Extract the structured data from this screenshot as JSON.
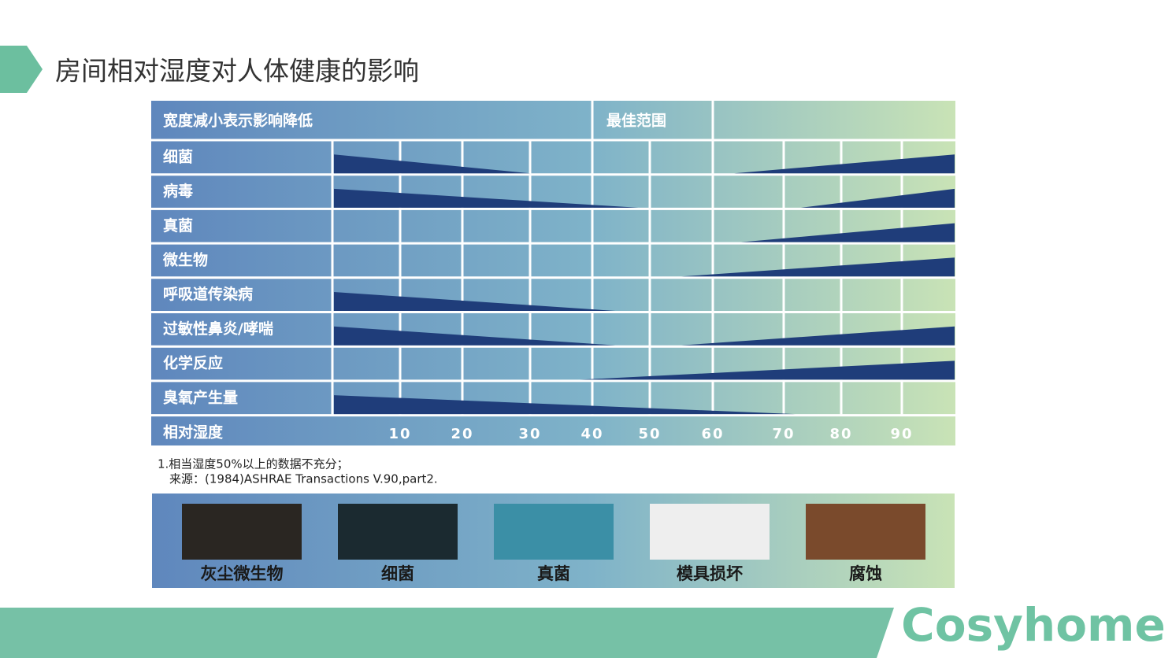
{
  "title": "房间相对湿度对人体健康的影响",
  "chart_data": {
    "type": "wedge",
    "header_note": "宽度减小表示影响降低",
    "optimal_label": "最佳范围",
    "optimal_range": [
      40,
      60
    ],
    "categories": [
      "细菌",
      "病毒",
      "真菌",
      "微生物",
      "呼吸道传染病",
      "过敏性鼻炎/哮喘",
      "化学反应",
      "臭氧产生量"
    ],
    "decrease_to": [
      30,
      48,
      null,
      null,
      44,
      44,
      null,
      72
    ],
    "increase_from": [
      63,
      73,
      64,
      55,
      null,
      55,
      38,
      null
    ],
    "color": "#1f3d7a",
    "x_label": "相对湿度",
    "xlim": [
      0,
      100
    ],
    "xticks": [
      10,
      20,
      30,
      40,
      50,
      60,
      70,
      80,
      90
    ]
  },
  "notes": [
    "1.相当湿度50%以上的数据不充分；",
    "来源：(1984)ASHRAE Transactions V.90,part2."
  ],
  "gallery": [
    "灰尘微生物",
    "细菌",
    "真菌",
    "模具损坏",
    "腐蚀"
  ],
  "brand": "Cosyhome"
}
